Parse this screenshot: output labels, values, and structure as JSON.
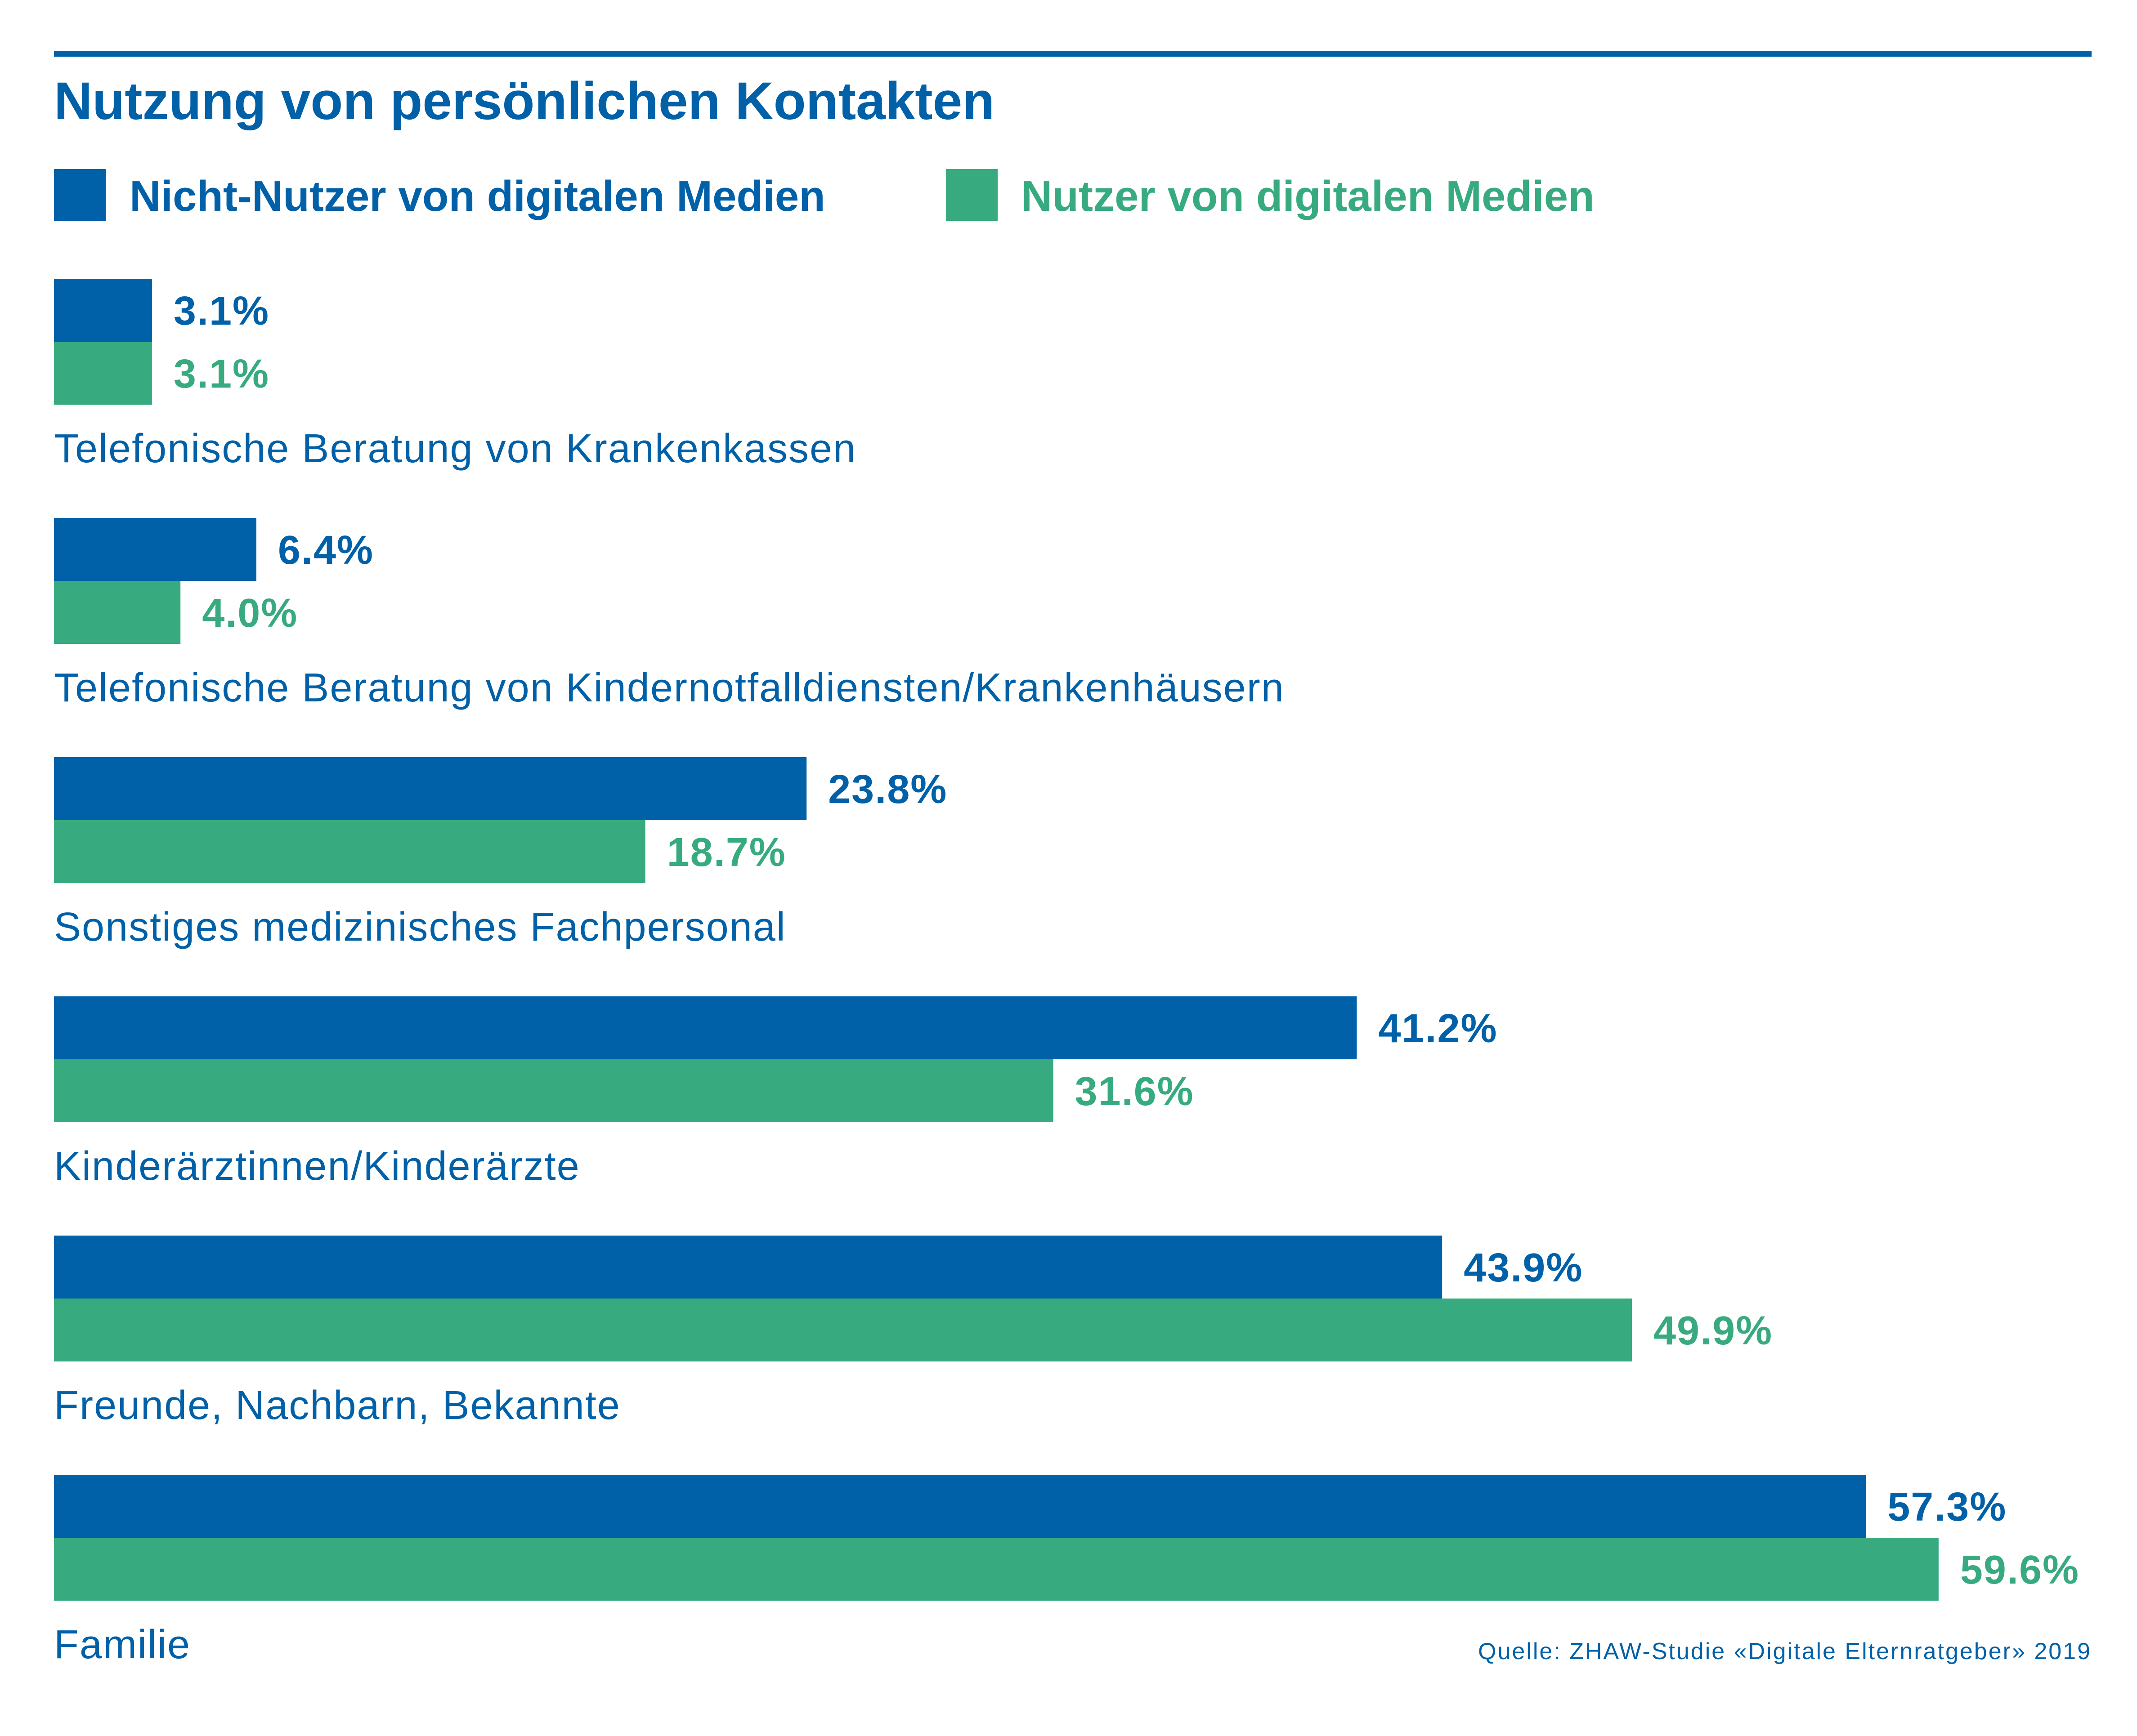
{
  "colors": {
    "primary": "#0060a8",
    "secondary": "#37ab7f",
    "background": "#ffffff"
  },
  "chart_data": {
    "type": "bar",
    "orientation": "horizontal",
    "title": "Nutzung von persönlichen Kontakten",
    "legend_placement": "top-left",
    "grid": false,
    "xlim": [
      0,
      65
    ],
    "categories": [
      "Telefonische Beratung von Krankenkassen",
      "Telefonische Beratung von Kindernotfalldiensten/Krankenhäusern",
      "Sonstiges medizinisches Fachpersonal",
      "Kinderärztinnen/Kinderärzte",
      "Freunde, Nachbarn, Bekannte",
      "Familie"
    ],
    "series": [
      {
        "name": "Nicht-Nutzer von digitalen Medien",
        "color": "#0060a8",
        "values": [
          3.1,
          6.4,
          23.8,
          41.2,
          43.9,
          57.3
        ],
        "labels": [
          "3.1%",
          "6.4%",
          "23.8%",
          "41.2%",
          "43.9%",
          "57.3%"
        ]
      },
      {
        "name": "Nutzer von digitalen Medien",
        "color": "#37ab7f",
        "values": [
          3.1,
          4.0,
          18.7,
          31.6,
          49.9,
          59.6
        ],
        "labels": [
          "3.1%",
          "4.0%",
          "18.7%",
          "31.6%",
          "49.9%",
          "59.6%"
        ]
      }
    ],
    "source": "Quelle: ZHAW-Studie «Digitale Elternratgeber» 2019"
  }
}
